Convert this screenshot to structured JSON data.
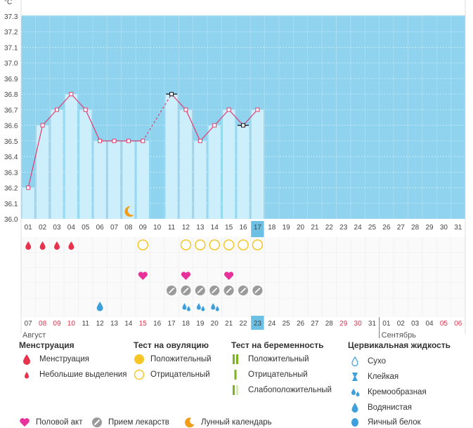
{
  "chart_data": {
    "type": "line",
    "unit_label": "°C",
    "ylim": [
      36.0,
      37.3
    ],
    "yticks": [
      "36.0",
      "36.1",
      "36.2",
      "36.3",
      "36.4",
      "36.5",
      "36.6",
      "36.7",
      "36.8",
      "36.9",
      "37.0",
      "37.1",
      "37.2",
      "37.3"
    ],
    "cycle_days": [
      "01",
      "02",
      "03",
      "04",
      "05",
      "06",
      "07",
      "08",
      "09",
      "10",
      "11",
      "12",
      "13",
      "14",
      "15",
      "16",
      "17",
      "18",
      "19",
      "20",
      "21",
      "22",
      "23",
      "24",
      "25",
      "26",
      "27",
      "28",
      "29",
      "30",
      "31"
    ],
    "current_day_index": 16,
    "temperatures": [
      36.2,
      36.6,
      36.7,
      36.8,
      36.7,
      36.5,
      36.5,
      36.5,
      36.5,
      null,
      36.8,
      36.7,
      36.5,
      36.6,
      36.7,
      36.6,
      36.7,
      null,
      null,
      null,
      null,
      null,
      null,
      null,
      null,
      null,
      null,
      null,
      null,
      null,
      null
    ],
    "excluded_days": [
      10,
      15
    ],
    "dashed_segment": [
      8,
      10
    ],
    "lunar_calendar_day": 7,
    "menstruation_days": [
      0,
      1,
      2,
      3
    ],
    "ovulation_negative_days": [
      8,
      11,
      12,
      13,
      14,
      15,
      16
    ],
    "intercourse_days": [
      8,
      11,
      14
    ],
    "medication_days": [
      10,
      11,
      12,
      13,
      14,
      15,
      16
    ],
    "cervical_watery_days": [
      5
    ],
    "cervical_creamy_days": [
      11,
      12,
      13
    ],
    "calendar_dates": [
      "07",
      "08",
      "09",
      "10",
      "11",
      "12",
      "13",
      "14",
      "15",
      "16",
      "17",
      "18",
      "19",
      "20",
      "21",
      "22",
      "23",
      "24",
      "25",
      "26",
      "27",
      "28",
      "29",
      "30",
      "31",
      "01",
      "02",
      "03",
      "04",
      "05",
      "06"
    ],
    "calendar_red_dates": [
      1,
      2,
      3,
      8,
      22,
      23,
      29,
      30
    ],
    "calendar_today_index": 16,
    "month_labels": [
      "Август",
      "Сентябрь"
    ],
    "month_split_index": 25
  },
  "colors": {
    "sky": "#8fd3ef",
    "bar": "#cdeefb",
    "line": "#e03c6e",
    "today": "#6cc0e3",
    "red": "#e8324c",
    "pink": "#e8319a",
    "yellow": "#f5c626",
    "orange": "#f29d17",
    "water": "#3d9fdc",
    "green": "#7ab51d",
    "gray": "#9a9a9a"
  },
  "legend": {
    "menstruation": {
      "title": "Менструация",
      "items": [
        "Менструация",
        "Небольшие выделения"
      ]
    },
    "ovulation": {
      "title": "Тест на овуляцию",
      "items": [
        "Положительный",
        "Отрицательный"
      ]
    },
    "pregnancy": {
      "title": "Тест на беременность",
      "items": [
        "Положительный",
        "Отрицательный",
        "Слабоположительный"
      ]
    },
    "cervical": {
      "title": "Цервикальная жидкость",
      "items": [
        "Сухо",
        "Клейкая",
        "Кремообразная",
        "Водянистая",
        "Яичный белок"
      ]
    },
    "bottom": {
      "intercourse": "Половой акт",
      "medication": "Прием лекарств",
      "lunar": "Лунный календарь"
    }
  }
}
